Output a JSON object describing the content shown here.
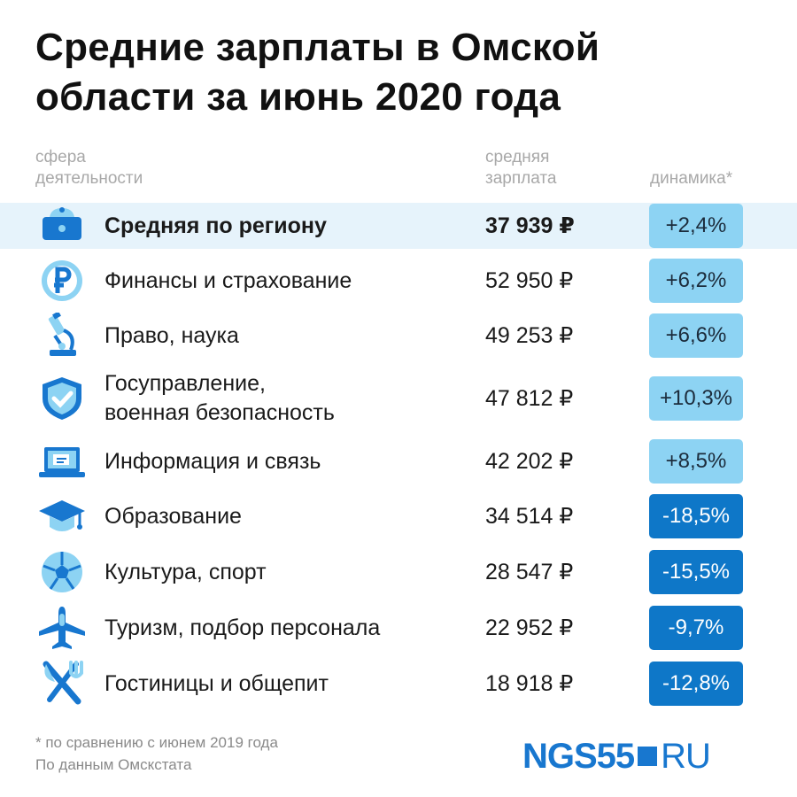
{
  "title_line1": "Средние зарплаты в Омской",
  "title_line2": "области за июнь 2020 года",
  "headers": {
    "sphere_1": "сфера",
    "sphere_2": "деятельности",
    "salary_1": "средняя",
    "salary_2": "зарплата",
    "dynamics": "динамика*"
  },
  "chart_data": {
    "type": "table",
    "columns": [
      "сфера деятельности",
      "средняя зарплата",
      "динамика*"
    ],
    "rows": [
      {
        "icon": "wallet-icon",
        "name_1": "Средняя по региону",
        "name_2": "",
        "salary": "37 939 ₽",
        "salary_value": 37939,
        "dynamics": "+2,4%",
        "dynamics_value": 2.4,
        "highlight": true
      },
      {
        "icon": "ruble-coin-icon",
        "name_1": "Финансы и страхование",
        "name_2": "",
        "salary": "52 950 ₽",
        "salary_value": 52950,
        "dynamics": "+6,2%",
        "dynamics_value": 6.2
      },
      {
        "icon": "microscope-icon",
        "name_1": "Право, наука",
        "name_2": "",
        "salary": "49 253 ₽",
        "salary_value": 49253,
        "dynamics": "+6,6%",
        "dynamics_value": 6.6
      },
      {
        "icon": "shield-check-icon",
        "name_1": "Госуправление,",
        "name_2": "военная безопасность",
        "salary": "47 812 ₽",
        "salary_value": 47812,
        "dynamics": "+10,3%",
        "dynamics_value": 10.3
      },
      {
        "icon": "laptop-icon",
        "name_1": "Информация и связь",
        "name_2": "",
        "salary": "42 202 ₽",
        "salary_value": 42202,
        "dynamics": "+8,5%",
        "dynamics_value": 8.5
      },
      {
        "icon": "graduation-cap-icon",
        "name_1": "Образование",
        "name_2": "",
        "salary": "34 514 ₽",
        "salary_value": 34514,
        "dynamics": "-18,5%",
        "dynamics_value": -18.5
      },
      {
        "icon": "soccer-ball-icon",
        "name_1": "Культура, спорт",
        "name_2": "",
        "salary": "28 547 ₽",
        "salary_value": 28547,
        "dynamics": "-15,5%",
        "dynamics_value": -15.5
      },
      {
        "icon": "airplane-icon",
        "name_1": "Туризм, подбор персонала",
        "name_2": "",
        "salary": "22 952 ₽",
        "salary_value": 22952,
        "dynamics": "-9,7%",
        "dynamics_value": -9.7
      },
      {
        "icon": "fork-knife-icon",
        "name_1": "Гостиницы и общепит",
        "name_2": "",
        "salary": "18 918 ₽",
        "salary_value": 18918,
        "dynamics": "-12,8%",
        "dynamics_value": -12.8
      }
    ]
  },
  "footnote_1": "* по сравнению с июнем 2019 года",
  "footnote_2": "По данным Омскстата",
  "logo": {
    "part1": "NGS55",
    "part2": "RU"
  },
  "colors": {
    "positive_badge": "#8dd3f3",
    "negative_badge": "#0e77c8",
    "highlight_row": "#e6f3fb",
    "icon_dark": "#1877cf",
    "icon_light": "#8dd3f3"
  }
}
